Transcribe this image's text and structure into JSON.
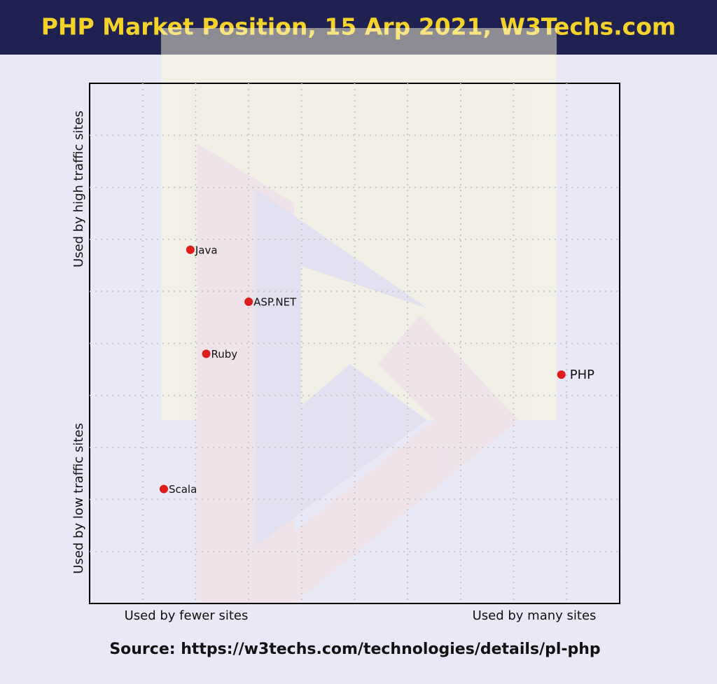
{
  "chart_data": {
    "type": "scatter",
    "title": "PHP Market Position, 15 Arp 2021, W3Techs.com",
    "x_label_left": "Used by fewer sites",
    "x_label_right": "Used by many sites",
    "y_label_top": "Used by high traffic sites",
    "y_label_bottom": "Used by low traffic sites",
    "source": "Source: https://w3techs.com/technologies/details/pl-php",
    "labels": [
      "Java",
      "ASP.NET",
      "Ruby",
      "PHP",
      "Scala"
    ],
    "x": [
      1.9,
      3.0,
      2.2,
      8.9,
      1.4
    ],
    "values": [
      6.8,
      5.8,
      4.8,
      4.4,
      2.2
    ],
    "color": "#dd1c1c",
    "xlim": [
      0,
      10
    ],
    "ylim": [
      0,
      10
    ],
    "xticks": [
      1,
      2,
      3,
      4,
      5,
      6,
      7,
      8,
      9
    ],
    "yticks": [
      1,
      2,
      3,
      4,
      5,
      6,
      7,
      8,
      9
    ],
    "grid": true
  }
}
